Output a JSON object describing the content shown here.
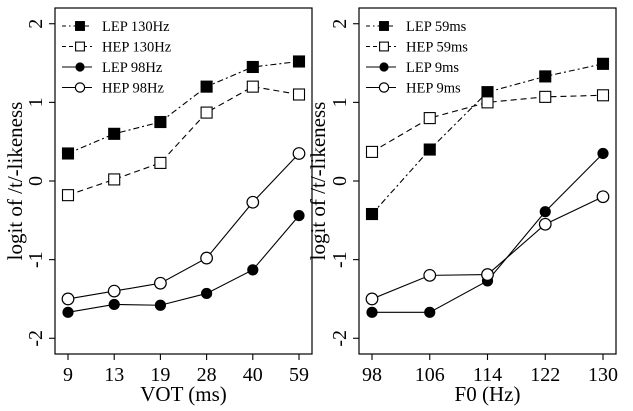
{
  "chart_data": [
    {
      "type": "line",
      "xlabel": "VOT (ms)",
      "ylabel": "logit of /t/-likeness",
      "categories": [
        "9",
        "13",
        "19",
        "28",
        "40",
        "59"
      ],
      "ylim": [
        -2.2,
        2.2
      ],
      "yticks": [
        -2,
        -1,
        0,
        1,
        2
      ],
      "grid": false,
      "legend_position": "top-left",
      "series": [
        {
          "name": "LEP 130Hz",
          "marker": "filled-square",
          "line": "dotdash",
          "values": [
            0.35,
            0.6,
            0.75,
            1.2,
            1.45,
            1.52
          ]
        },
        {
          "name": "HEP 130Hz",
          "marker": "open-square",
          "line": "dashed",
          "values": [
            -0.18,
            0.02,
            0.23,
            0.87,
            1.2,
            1.1
          ]
        },
        {
          "name": "LEP 98Hz",
          "marker": "filled-circle",
          "line": "solid",
          "values": [
            -1.67,
            -1.57,
            -1.58,
            -1.43,
            -1.13,
            -0.44
          ]
        },
        {
          "name": "HEP 98Hz",
          "marker": "open-circle",
          "line": "solid",
          "values": [
            -1.5,
            -1.4,
            -1.3,
            -0.98,
            -0.27,
            0.35
          ]
        }
      ]
    },
    {
      "type": "line",
      "xlabel": "F0 (Hz)",
      "ylabel": "logit of /t/-likeness",
      "categories": [
        "98",
        "106",
        "114",
        "122",
        "130"
      ],
      "ylim": [
        -2.2,
        2.2
      ],
      "yticks": [
        -2,
        -1,
        0,
        1,
        2
      ],
      "grid": false,
      "legend_position": "top-left",
      "series": [
        {
          "name": "LEP 59ms",
          "marker": "filled-square",
          "line": "dotdash",
          "values": [
            -0.42,
            0.4,
            1.13,
            1.33,
            1.49
          ]
        },
        {
          "name": "HEP 59ms",
          "marker": "open-square",
          "line": "dashed",
          "values": [
            0.37,
            0.8,
            1.0,
            1.07,
            1.09
          ]
        },
        {
          "name": "LEP 9ms",
          "marker": "filled-circle",
          "line": "solid",
          "values": [
            -1.67,
            -1.67,
            -1.27,
            -0.39,
            0.35
          ]
        },
        {
          "name": "HEP 9ms",
          "marker": "open-circle",
          "line": "solid",
          "values": [
            -1.5,
            -1.2,
            -1.19,
            -0.55,
            -0.2
          ]
        }
      ]
    }
  ]
}
